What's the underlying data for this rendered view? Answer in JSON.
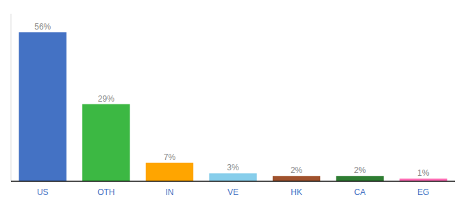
{
  "chart_data": {
    "type": "bar",
    "categories": [
      "US",
      "OTH",
      "IN",
      "VE",
      "HK",
      "CA",
      "EG"
    ],
    "values": [
      56,
      29,
      7,
      3,
      2,
      2,
      1
    ],
    "value_labels": [
      "56%",
      "29%",
      "7%",
      "3%",
      "2%",
      "2%",
      "1%"
    ],
    "colors": [
      "#4472C4",
      "#3CB843",
      "#FFA500",
      "#87CEEB",
      "#A0522D",
      "#2E7D32",
      "#FF69B4"
    ],
    "ylim": [
      0,
      63
    ],
    "data_labels": true,
    "tick_labels": "x"
  }
}
